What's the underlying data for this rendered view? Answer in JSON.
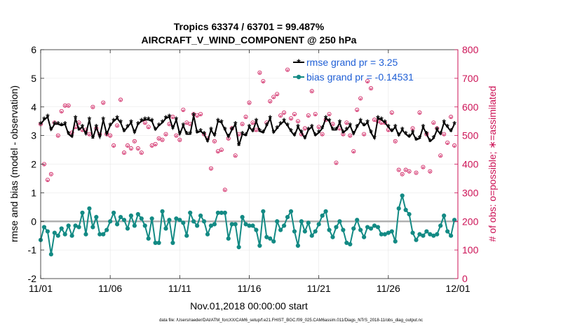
{
  "chart_data": {
    "type": "line",
    "title_line1": "Tropics 63374 / 63701 = 99.487%",
    "title_line2": "AIRCRAFT_V_WIND_COMPONENT @ 250 hPa",
    "xlabel": "Nov.01,2018 00:00:00 start",
    "ylabel_left": "rmse and bias (model - observation)",
    "ylabel_right": "# of obs: o=possible; ∗=assimilated",
    "footer": "data file: /Users/raeder/DAI/ATM_forcXX/CAM6_setup/f.e21.FHIST_BGC.f09_025.CAM6assim.011/Diags_NTrS_2018-11/obs_diag_output.nc",
    "x_range": [
      0,
      30
    ],
    "x_ticks": [
      0,
      5,
      10,
      15,
      20,
      25,
      30
    ],
    "x_tick_labels": [
      "11/01",
      "11/06",
      "11/11",
      "11/16",
      "11/21",
      "11/26",
      "12/01"
    ],
    "y_left_range": [
      -2,
      6
    ],
    "y_left_ticks": [
      "-2",
      "-1",
      "0",
      "1",
      "2",
      "3",
      "4",
      "5",
      "6"
    ],
    "y_right_range": [
      0,
      800
    ],
    "y_right_ticks": [
      "0",
      "100",
      "200",
      "300",
      "400",
      "500",
      "600",
      "700",
      "800"
    ],
    "legend": {
      "position": "top-right",
      "rmse": "rmse grand pr = 3.25",
      "bias": "bias grand pr = -0.14531"
    },
    "colors": {
      "rmse": "#000000",
      "bias": "#138a84",
      "obs": "#cc1155",
      "zero_line": "#b0b0b0",
      "legend_text": "#1f5fd6",
      "right_axis": "#cc1155"
    },
    "series": [
      {
        "name": "rmse",
        "x": [
          0.0,
          0.25,
          0.5,
          0.75,
          1.0,
          1.25,
          1.5,
          1.75,
          2.0,
          2.25,
          2.5,
          2.75,
          3.0,
          3.25,
          3.5,
          3.75,
          4.0,
          4.25,
          4.5,
          4.75,
          5.0,
          5.25,
          5.5,
          5.75,
          6.0,
          6.25,
          6.5,
          6.75,
          7.0,
          7.25,
          7.5,
          7.75,
          8.0,
          8.25,
          8.5,
          8.75,
          9.0,
          9.25,
          9.5,
          9.75,
          10.0,
          10.25,
          10.5,
          10.75,
          11.0,
          11.25,
          11.5,
          11.75,
          12.0,
          12.25,
          12.5,
          12.75,
          13.0,
          13.25,
          13.5,
          13.75,
          14.0,
          14.25,
          14.5,
          14.75,
          15.0,
          15.25,
          15.5,
          15.75,
          16.0,
          16.25,
          16.5,
          16.75,
          17.0,
          17.25,
          17.5,
          17.75,
          18.0,
          18.25,
          18.5,
          18.75,
          19.0,
          19.25,
          19.5,
          19.75,
          20.0,
          20.25,
          20.5,
          20.75,
          21.0,
          21.25,
          21.5,
          21.75,
          22.0,
          22.25,
          22.5,
          22.75,
          23.0,
          23.25,
          23.5,
          23.75,
          24.0,
          24.25,
          24.5,
          24.75,
          25.0,
          25.25,
          25.5,
          25.75,
          26.0,
          26.25,
          26.5,
          26.75,
          27.0,
          27.25,
          27.5,
          27.75,
          28.0,
          28.25,
          28.5,
          28.75,
          29.0,
          29.25,
          29.5,
          29.75
        ],
        "values": [
          3.4,
          3.55,
          3.65,
          3.2,
          3.4,
          3.4,
          3.35,
          3.4,
          3.05,
          2.95,
          3.6,
          3.2,
          3.3,
          3.05,
          3.55,
          2.9,
          3.3,
          2.95,
          3.55,
          3.05,
          3.35,
          3.5,
          3.6,
          3.45,
          3.15,
          3.3,
          3.45,
          3.1,
          3.4,
          3.5,
          3.55,
          3.55,
          3.5,
          3.2,
          3.35,
          3.45,
          3.6,
          3.65,
          3.25,
          3.55,
          3.05,
          3.35,
          3.05,
          3.05,
          3.7,
          3.1,
          3.15,
          3.05,
          2.8,
          3.2,
          3.0,
          3.5,
          3.45,
          3.2,
          2.95,
          3.2,
          3.4,
          2.65,
          3.05,
          3.0,
          3.3,
          3.15,
          3.5,
          3.15,
          3.1,
          3.35,
          3.6,
          3.1,
          3.25,
          3.4,
          3.5,
          3.35,
          3.15,
          3.0,
          3.3,
          3.1,
          2.9,
          3.2,
          3.3,
          3.0,
          3.1,
          3.25,
          3.6,
          3.5,
          3.2,
          3.2,
          3.45,
          3.1,
          3.2,
          3.35,
          3.05,
          3.3,
          3.5,
          3.35,
          3.45,
          3.1,
          2.9,
          3.6,
          3.55,
          3.45,
          3.3,
          3.15,
          3.3,
          3.0,
          3.2,
          3.05,
          2.95,
          3.1,
          2.85,
          2.9,
          3.3,
          3.05,
          2.8,
          2.9,
          3.2,
          3.05,
          3.45,
          3.3,
          3.15,
          3.4
        ],
        "color": "#000000"
      },
      {
        "name": "bias",
        "x": [
          0.0,
          0.25,
          0.5,
          0.75,
          1.0,
          1.25,
          1.5,
          1.75,
          2.0,
          2.25,
          2.5,
          2.75,
          3.0,
          3.25,
          3.5,
          3.75,
          4.0,
          4.25,
          4.5,
          4.75,
          5.0,
          5.25,
          5.5,
          5.75,
          6.0,
          6.25,
          6.5,
          6.75,
          7.0,
          7.25,
          7.5,
          7.75,
          8.0,
          8.25,
          8.5,
          8.75,
          9.0,
          9.25,
          9.5,
          9.75,
          10.0,
          10.25,
          10.5,
          10.75,
          11.0,
          11.25,
          11.5,
          11.75,
          12.0,
          12.25,
          12.5,
          12.75,
          13.0,
          13.25,
          13.5,
          13.75,
          14.0,
          14.25,
          14.5,
          14.75,
          15.0,
          15.25,
          15.5,
          15.75,
          16.0,
          16.25,
          16.5,
          16.75,
          17.0,
          17.25,
          17.5,
          17.75,
          18.0,
          18.25,
          18.5,
          18.75,
          19.0,
          19.25,
          19.5,
          19.75,
          20.0,
          20.25,
          20.5,
          20.75,
          21.0,
          21.25,
          21.5,
          21.75,
          22.0,
          22.25,
          22.5,
          22.75,
          23.0,
          23.25,
          23.5,
          23.75,
          24.0,
          24.25,
          24.5,
          24.75,
          25.0,
          25.25,
          25.5,
          25.75,
          26.0,
          26.25,
          26.5,
          26.75,
          27.0,
          27.25,
          27.5,
          27.75,
          28.0,
          28.25,
          28.5,
          28.75,
          29.0,
          29.25,
          29.5,
          29.75
        ],
        "values": [
          -0.65,
          -0.2,
          -0.35,
          -1.15,
          -0.4,
          -0.5,
          -0.25,
          -0.45,
          -0.15,
          -0.5,
          -0.15,
          -0.2,
          0.3,
          -0.45,
          0.45,
          -0.2,
          0.15,
          -0.45,
          -0.45,
          -0.3,
          0.0,
          0.3,
          -0.1,
          0.15,
          0.05,
          -0.25,
          0.2,
          -0.15,
          0.25,
          0.1,
          -0.15,
          -0.6,
          0.1,
          -0.75,
          -0.75,
          0.35,
          -0.25,
          0.05,
          -0.75,
          0.1,
          0.05,
          -0.05,
          -0.5,
          0.3,
          0.0,
          -0.15,
          0.2,
          0.0,
          -0.45,
          -0.15,
          -0.1,
          0.3,
          0.3,
          0.3,
          -0.6,
          -0.1,
          -0.1,
          -0.9,
          0.15,
          -0.1,
          -0.15,
          -0.15,
          -0.3,
          -0.85,
          0.35,
          -0.55,
          -0.6,
          -0.7,
          0.0,
          -0.3,
          -0.15,
          0.15,
          0.35,
          -0.35,
          -0.85,
          0.0,
          -0.35,
          -0.05,
          -0.5,
          -0.35,
          -0.1,
          0.2,
          0.35,
          -0.3,
          -0.55,
          -0.2,
          0.0,
          -0.3,
          -0.75,
          -0.8,
          -0.25,
          0.05,
          -0.3,
          -0.55,
          -0.2,
          -0.25,
          -0.15,
          -0.2,
          -0.45,
          -0.45,
          -0.4,
          -0.35,
          -0.7,
          0.45,
          0.9,
          0.4,
          0.25,
          -0.4,
          -0.65,
          -0.45,
          -0.5,
          -0.35,
          -0.45,
          -0.5,
          -0.45,
          -0.15,
          0.2,
          -0.35,
          -0.5,
          0.05
        ],
        "color": "#138a84"
      }
    ],
    "obs_possible": {
      "name": "possible",
      "marker": "o",
      "x": [
        0.0,
        0.25,
        0.5,
        0.75,
        1.0,
        1.25,
        1.5,
        1.75,
        2.0,
        2.25,
        2.5,
        2.75,
        3.0,
        3.25,
        3.5,
        3.75,
        4.0,
        4.25,
        4.5,
        4.75,
        5.0,
        5.25,
        5.5,
        5.75,
        6.0,
        6.25,
        6.5,
        6.75,
        7.0,
        7.25,
        7.5,
        7.75,
        8.0,
        8.25,
        8.5,
        8.75,
        9.0,
        9.25,
        9.5,
        9.75,
        10.0,
        10.25,
        10.5,
        10.75,
        11.0,
        11.25,
        11.5,
        11.75,
        12.0,
        12.25,
        12.5,
        12.75,
        13.0,
        13.25,
        13.5,
        13.75,
        14.0,
        14.25,
        14.5,
        14.75,
        15.0,
        15.25,
        15.5,
        15.75,
        16.0,
        16.25,
        16.5,
        16.75,
        17.0,
        17.25,
        17.5,
        17.75,
        18.0,
        18.25,
        18.5,
        18.75,
        19.0,
        19.25,
        19.5,
        19.75,
        20.0,
        20.25,
        20.5,
        20.75,
        21.0,
        21.25,
        21.5,
        21.75,
        22.0,
        22.25,
        22.5,
        22.75,
        23.0,
        23.25,
        23.5,
        23.75,
        24.0,
        24.25,
        24.5,
        24.75,
        25.0,
        25.25,
        25.5,
        25.75,
        26.0,
        26.25,
        26.5,
        26.75,
        27.0,
        27.25,
        27.5,
        27.75,
        28.0,
        28.25,
        28.5,
        28.75,
        29.0,
        29.25,
        29.5,
        29.75
      ],
      "values": [
        540,
        400,
        345,
        365,
        545,
        500,
        585,
        605,
        605,
        510,
        530,
        545,
        520,
        520,
        505,
        600,
        525,
        505,
        615,
        505,
        500,
        465,
        535,
        625,
        440,
        465,
        455,
        480,
        455,
        440,
        545,
        530,
        465,
        470,
        490,
        485,
        505,
        540,
        565,
        500,
        485,
        590,
        545,
        540,
        575,
        570,
        575,
        505,
        490,
        385,
        480,
        445,
        450,
        310,
        490,
        525,
        430,
        505,
        540,
        565,
        615,
        545,
        520,
        720,
        690,
        545,
        620,
        635,
        645,
        570,
        580,
        730,
        560,
        575,
        550,
        505,
        525,
        570,
        655,
        575,
        530,
        505,
        555,
        575,
        540,
        405,
        525,
        505,
        545,
        500,
        445,
        590,
        630,
        505,
        690,
        665,
        555,
        550,
        545,
        545,
        520,
        580,
        480,
        380,
        365,
        380,
        375,
        525,
        370,
        580,
        390,
        505,
        375,
        545,
        525,
        430,
        505,
        475,
        565,
        465
      ],
      "color": "#cc1155"
    },
    "obs_assimilated": {
      "name": "assimilated",
      "marker": "*",
      "x": [
        0.0,
        0.25,
        0.5,
        0.75,
        1.0,
        1.25,
        1.5,
        1.75,
        2.0,
        2.25,
        2.5,
        2.75,
        3.0,
        3.25,
        3.5,
        3.75,
        4.0,
        4.25,
        4.5,
        4.75,
        5.0,
        5.25,
        5.5,
        5.75,
        6.0,
        6.25,
        6.5,
        6.75,
        7.0,
        7.25,
        7.5,
        7.75,
        8.0,
        8.25,
        8.5,
        8.75,
        9.0,
        9.25,
        9.5,
        9.75,
        10.0,
        10.25,
        10.5,
        10.75,
        11.0,
        11.25,
        11.5,
        11.75,
        12.0,
        12.25,
        12.5,
        12.75,
        13.0,
        13.25,
        13.5,
        13.75,
        14.0,
        14.25,
        14.5,
        14.75,
        15.0,
        15.25,
        15.5,
        15.75,
        16.0,
        16.25,
        16.5,
        16.75,
        17.0,
        17.25,
        17.5,
        17.75,
        18.0,
        18.25,
        18.5,
        18.75,
        19.0,
        19.25,
        19.5,
        19.75,
        20.0,
        20.25,
        20.5,
        20.75,
        21.0,
        21.25,
        21.5,
        21.75,
        22.0,
        22.25,
        22.5,
        22.75,
        23.0,
        23.25,
        23.5,
        23.75,
        24.0,
        24.25,
        24.5,
        24.75,
        25.0,
        25.25,
        25.5,
        25.75,
        26.0,
        26.25,
        26.5,
        26.75,
        27.0,
        27.25,
        27.5,
        27.75,
        28.0,
        28.25,
        28.5,
        28.75,
        29.0,
        29.25,
        29.5,
        29.75
      ],
      "values": [
        537,
        397,
        342,
        362,
        542,
        497,
        582,
        602,
        602,
        507,
        527,
        542,
        517,
        517,
        502,
        597,
        522,
        502,
        612,
        502,
        497,
        462,
        532,
        622,
        437,
        462,
        452,
        477,
        452,
        437,
        542,
        527,
        462,
        467,
        487,
        482,
        502,
        537,
        562,
        497,
        482,
        587,
        542,
        537,
        572,
        567,
        572,
        502,
        487,
        382,
        477,
        442,
        447,
        307,
        487,
        522,
        427,
        502,
        537,
        562,
        612,
        542,
        517,
        717,
        687,
        542,
        617,
        632,
        642,
        567,
        577,
        727,
        557,
        572,
        547,
        502,
        522,
        567,
        652,
        572,
        527,
        502,
        552,
        572,
        537,
        402,
        522,
        502,
        542,
        497,
        442,
        587,
        627,
        502,
        687,
        662,
        552,
        547,
        542,
        542,
        517,
        577,
        477,
        377,
        362,
        377,
        372,
        522,
        367,
        577,
        387,
        502,
        372,
        542,
        522,
        427,
        502,
        472,
        562,
        462
      ],
      "color": "#cc1155"
    }
  }
}
